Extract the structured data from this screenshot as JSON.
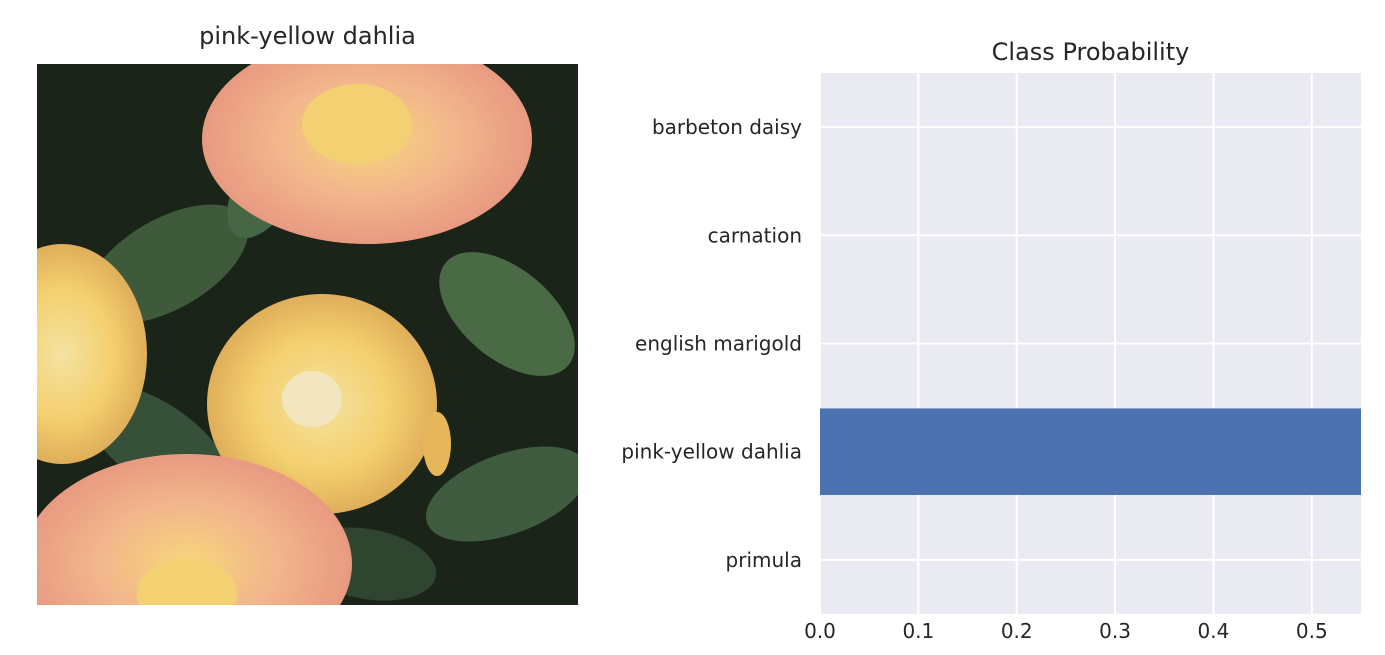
{
  "image_panel": {
    "title": "pink-yellow dahlia",
    "image_description": ""
  },
  "chart_data": {
    "type": "bar",
    "orientation": "horizontal",
    "title": "Class Probability",
    "categories": [
      "barbeton daisy",
      "carnation",
      "english marigold",
      "pink-yellow dahlia",
      "primula"
    ],
    "values": [
      0.0,
      0.0,
      0.0,
      0.55,
      0.0
    ],
    "xlabel": "",
    "ylabel": "",
    "xlim": [
      0,
      0.55
    ],
    "xticks": [
      "0.0",
      "0.1",
      "0.2",
      "0.3",
      "0.4",
      "0.5"
    ],
    "grid": true,
    "legend": "none",
    "colors": {
      "bar": "#4c72b0",
      "axes_bg": "#eaeaf2",
      "grid": "#ffffff",
      "text": "#262626"
    }
  }
}
